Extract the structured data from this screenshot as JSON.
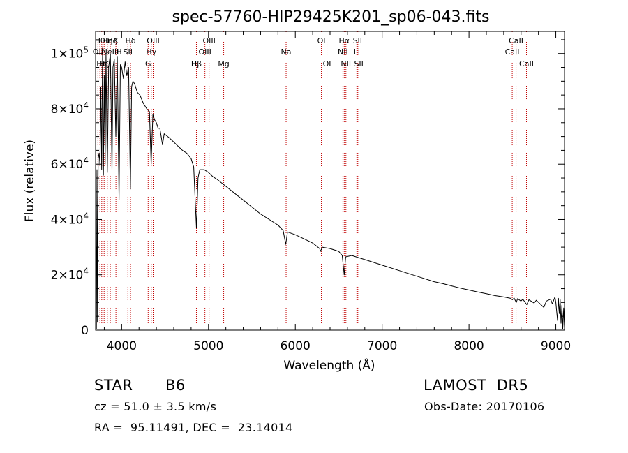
{
  "chart_data": {
    "type": "line",
    "title": "spec-57760-HIP29425K201_sp06-043.fits",
    "xlabel": "Wavelength (Å)",
    "ylabel": "Flux (relative)",
    "xlim": [
      3700,
      9100
    ],
    "ylim": [
      0,
      108000
    ],
    "x_ticks": [
      {
        "v": 4000,
        "label": "4000"
      },
      {
        "v": 5000,
        "label": "5000"
      },
      {
        "v": 6000,
        "label": "6000"
      },
      {
        "v": 7000,
        "label": "7000"
      },
      {
        "v": 8000,
        "label": "8000"
      },
      {
        "v": 9000,
        "label": "9000"
      }
    ],
    "y_ticks": [
      {
        "v": 0,
        "mant": "0",
        "exp": ""
      },
      {
        "v": 20000,
        "mant": "2×10",
        "exp": "4"
      },
      {
        "v": 40000,
        "mant": "4×10",
        "exp": "4"
      },
      {
        "v": 60000,
        "mant": "6×10",
        "exp": "4"
      },
      {
        "v": 80000,
        "mant": "8×10",
        "exp": "4"
      },
      {
        "v": 100000,
        "mant": "1×10",
        "exp": "5"
      }
    ],
    "grid": false,
    "series": [
      {
        "points": [
          [
            3700,
            0
          ],
          [
            3705,
            30000
          ],
          [
            3710,
            500
          ],
          [
            3716,
            58000
          ],
          [
            3722,
            3000
          ],
          [
            3730,
            62000
          ],
          [
            3740,
            64000
          ],
          [
            3750,
            60000
          ],
          [
            3760,
            88000
          ],
          [
            3770,
            58000
          ],
          [
            3780,
            102000
          ],
          [
            3790,
            56000
          ],
          [
            3800,
            92000
          ],
          [
            3810,
            60000
          ],
          [
            3820,
            100000
          ],
          [
            3835,
            57000
          ],
          [
            3850,
            95000
          ],
          [
            3870,
            100000
          ],
          [
            3889,
            58000
          ],
          [
            3900,
            95000
          ],
          [
            3915,
            98000
          ],
          [
            3933,
            70000
          ],
          [
            3950,
            99000
          ],
          [
            3970,
            47000
          ],
          [
            3985,
            96000
          ],
          [
            4000,
            95000
          ],
          [
            4020,
            91000
          ],
          [
            4040,
            97000
          ],
          [
            4060,
            92000
          ],
          [
            4080,
            95000
          ],
          [
            4101,
            51000
          ],
          [
            4115,
            88000
          ],
          [
            4130,
            90000
          ],
          [
            4150,
            89000
          ],
          [
            4180,
            86000
          ],
          [
            4210,
            85000
          ],
          [
            4250,
            82000
          ],
          [
            4290,
            80000
          ],
          [
            4320,
            79000
          ],
          [
            4340,
            60000
          ],
          [
            4360,
            78000
          ],
          [
            4380,
            76000
          ],
          [
            4400,
            75000
          ],
          [
            4420,
            73000
          ],
          [
            4440,
            73000
          ],
          [
            4471,
            67000
          ],
          [
            4490,
            71000
          ],
          [
            4550,
            69500
          ],
          [
            4600,
            68000
          ],
          [
            4650,
            66500
          ],
          [
            4700,
            65000
          ],
          [
            4750,
            64000
          ],
          [
            4800,
            62000
          ],
          [
            4830,
            59000
          ],
          [
            4861,
            37000
          ],
          [
            4880,
            55000
          ],
          [
            4900,
            58000
          ],
          [
            4950,
            58000
          ],
          [
            5000,
            57000
          ],
          [
            5050,
            55500
          ],
          [
            5100,
            54500
          ],
          [
            5200,
            52000
          ],
          [
            5300,
            49500
          ],
          [
            5400,
            47000
          ],
          [
            5500,
            44500
          ],
          [
            5600,
            42000
          ],
          [
            5700,
            40000
          ],
          [
            5800,
            38000
          ],
          [
            5860,
            36000
          ],
          [
            5890,
            31000
          ],
          [
            5910,
            35500
          ],
          [
            6000,
            34500
          ],
          [
            6100,
            33000
          ],
          [
            6200,
            31500
          ],
          [
            6280,
            29500
          ],
          [
            6290,
            28500
          ],
          [
            6310,
            30000
          ],
          [
            6400,
            29500
          ],
          [
            6500,
            28500
          ],
          [
            6540,
            27000
          ],
          [
            6563,
            20000
          ],
          [
            6580,
            26500
          ],
          [
            6650,
            27000
          ],
          [
            6700,
            26500
          ],
          [
            6800,
            25500
          ],
          [
            6900,
            24500
          ],
          [
            7000,
            23500
          ],
          [
            7100,
            22500
          ],
          [
            7200,
            21500
          ],
          [
            7300,
            20500
          ],
          [
            7400,
            19500
          ],
          [
            7500,
            18500
          ],
          [
            7600,
            17500
          ],
          [
            7700,
            16800
          ],
          [
            7800,
            16000
          ],
          [
            7900,
            15200
          ],
          [
            8000,
            14500
          ],
          [
            8100,
            13800
          ],
          [
            8200,
            13200
          ],
          [
            8300,
            12500
          ],
          [
            8400,
            12000
          ],
          [
            8480,
            11500
          ],
          [
            8500,
            11000
          ],
          [
            8520,
            11600
          ],
          [
            8545,
            10000
          ],
          [
            8560,
            11400
          ],
          [
            8598,
            10500
          ],
          [
            8620,
            11200
          ],
          [
            8665,
            9200
          ],
          [
            8690,
            11000
          ],
          [
            8750,
            9800
          ],
          [
            8775,
            10800
          ],
          [
            8862,
            8200
          ],
          [
            8890,
            10500
          ],
          [
            8940,
            11200
          ],
          [
            8960,
            9500
          ],
          [
            8990,
            12000
          ],
          [
            9000,
            10000
          ],
          [
            9020,
            3500
          ],
          [
            9030,
            11500
          ],
          [
            9040,
            6000
          ],
          [
            9050,
            11000
          ],
          [
            9060,
            2500
          ],
          [
            9070,
            9000
          ],
          [
            9080,
            500
          ],
          [
            9090,
            8000
          ],
          [
            9100,
            1000
          ]
        ]
      }
    ],
    "line_markers": [
      {
        "x": 3727,
        "label": "OII",
        "row": 1
      },
      {
        "x": 3750,
        "label": "Hθ",
        "row": 0
      },
      {
        "x": 3771,
        "label": "Hη",
        "row": 2
      },
      {
        "x": 3798,
        "label": "Hζ",
        "row": 2
      },
      {
        "x": 3835,
        "label": "Hη",
        "row": 0
      },
      {
        "x": 3869,
        "label": "NeIII",
        "row": 1
      },
      {
        "x": 3889,
        "label": "Hζ",
        "row": 0
      },
      {
        "x": 3934,
        "label": "K",
        "row": 0
      },
      {
        "x": 3969,
        "label": "H",
        "row": 1
      },
      {
        "x": 4072,
        "label": "SII",
        "row": 1
      },
      {
        "x": 4102,
        "label": "Hδ",
        "row": 0
      },
      {
        "x": 4305,
        "label": "G",
        "row": 2
      },
      {
        "x": 4341,
        "label": "Hγ",
        "row": 1
      },
      {
        "x": 4363,
        "label": "OIII",
        "row": 0
      },
      {
        "x": 4861,
        "label": "Hβ",
        "row": 2
      },
      {
        "x": 4959,
        "label": "OIII",
        "row": 1
      },
      {
        "x": 5007,
        "label": "OIII",
        "row": 0
      },
      {
        "x": 5175,
        "label": "Mg",
        "row": 2
      },
      {
        "x": 5894,
        "label": "Na",
        "row": 1
      },
      {
        "x": 6300,
        "label": "OI",
        "row": 0
      },
      {
        "x": 6364,
        "label": "OI",
        "row": 2
      },
      {
        "x": 6548,
        "label": "NII",
        "row": 1
      },
      {
        "x": 6563,
        "label": "Hα",
        "row": 0
      },
      {
        "x": 6583,
        "label": "NII",
        "row": 2
      },
      {
        "x": 6708,
        "label": "Li",
        "row": 1
      },
      {
        "x": 6716,
        "label": "SII",
        "row": 0
      },
      {
        "x": 6731,
        "label": "SII",
        "row": 2
      },
      {
        "x": 8498,
        "label": "CaII",
        "row": 1
      },
      {
        "x": 8542,
        "label": "CaII",
        "row": 0
      },
      {
        "x": 8662,
        "label": "CaII",
        "row": 2
      }
    ]
  },
  "info": {
    "class_label": "STAR",
    "subclass": "B6",
    "survey": "LAMOST  DR5",
    "cz_text": "cz = 51.0 ± 3.5 km/s",
    "obs_date": "Obs-Date: 20170106",
    "coords": "RA =  95.11491, DEC =  23.14014"
  }
}
